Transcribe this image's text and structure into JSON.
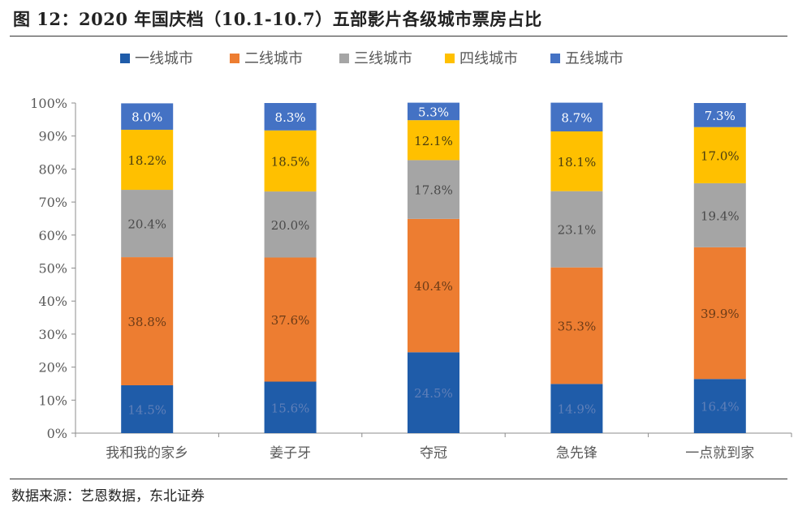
{
  "figure": {
    "title": "图  12：2020 年国庆档（10.1-10.7）五部影片各级城市票房占比",
    "source": "数据来源：艺恩数据，东北证券"
  },
  "colors": {
    "tier1": "#1f5ca9",
    "tier2": "#ed7d31",
    "tier3": "#a5a5a5",
    "tier4": "#ffc000",
    "tier5": "#4472c4",
    "axis": "#8c8c8c",
    "text": "#595959",
    "label": "#404040"
  },
  "chart_data": {
    "type": "bar",
    "stacked": true,
    "title": "2020 年国庆档（10.1-10.7）五部影片各级城市票房占比",
    "categories": [
      "我和我的家乡",
      "姜子牙",
      "夺冠",
      "急先锋",
      "一点就到家"
    ],
    "series": [
      {
        "name": "一线城市",
        "values": [
          14.5,
          15.6,
          24.5,
          14.9,
          16.4
        ],
        "labels": [
          "14.5%",
          "15.6%",
          "24.5%",
          "14.9%",
          "16.4%"
        ]
      },
      {
        "name": "二线城市",
        "values": [
          38.8,
          37.6,
          40.4,
          35.3,
          39.9
        ],
        "labels": [
          "38.8%",
          "37.6%",
          "40.4%",
          "35.3%",
          "39.9%"
        ]
      },
      {
        "name": "三线城市",
        "values": [
          20.4,
          20.0,
          17.8,
          23.1,
          19.4
        ],
        "labels": [
          "20.4%",
          "20.0%",
          "17.8%",
          "23.1%",
          "19.4%"
        ]
      },
      {
        "name": "四线城市",
        "values": [
          18.2,
          18.5,
          12.1,
          18.1,
          17.0
        ],
        "labels": [
          "18.2%",
          "18.5%",
          "12.1%",
          "18.1%",
          "17.0%"
        ]
      },
      {
        "name": "五线城市",
        "values": [
          8.0,
          8.3,
          5.3,
          8.7,
          7.3
        ],
        "labels": [
          "8.0%",
          "8.3%",
          "5.3%",
          "8.7%",
          "7.3%"
        ]
      }
    ],
    "yticks": [
      "0%",
      "10%",
      "20%",
      "30%",
      "40%",
      "50%",
      "60%",
      "70%",
      "80%",
      "90%",
      "100%"
    ],
    "ylim": [
      0,
      100
    ],
    "xlabel": "",
    "ylabel": "",
    "legend_position": "top"
  }
}
